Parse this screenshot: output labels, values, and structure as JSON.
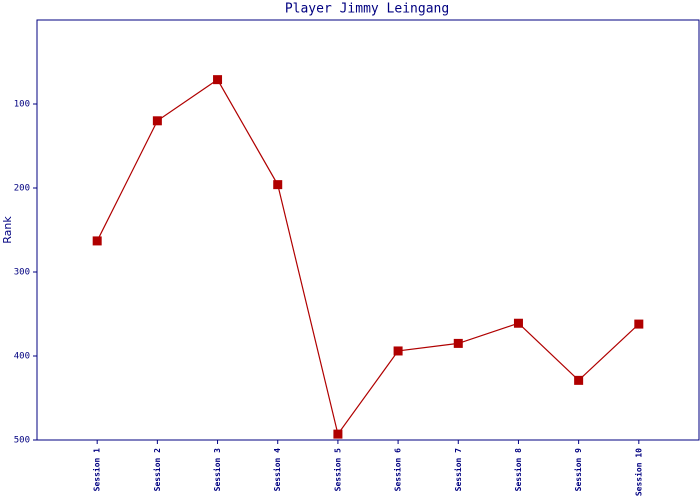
{
  "chart_data": {
    "type": "line",
    "title": "Player Jimmy Leingang",
    "y_label": "Rank",
    "categories": [
      "Session 1",
      "Session 2",
      "Session 3",
      "Session 4",
      "Session 5",
      "Session 6",
      "Session 7",
      "Session 8",
      "Session 9",
      "Session 10"
    ],
    "values": [
      263,
      120,
      71,
      196,
      493,
      394,
      385,
      361,
      429,
      362
    ],
    "color": "#b00000",
    "marker": "square",
    "ylim": [
      0,
      500
    ],
    "yticks": [
      100,
      200,
      300,
      400,
      500
    ],
    "y_inverted": true,
    "grid": false
  }
}
